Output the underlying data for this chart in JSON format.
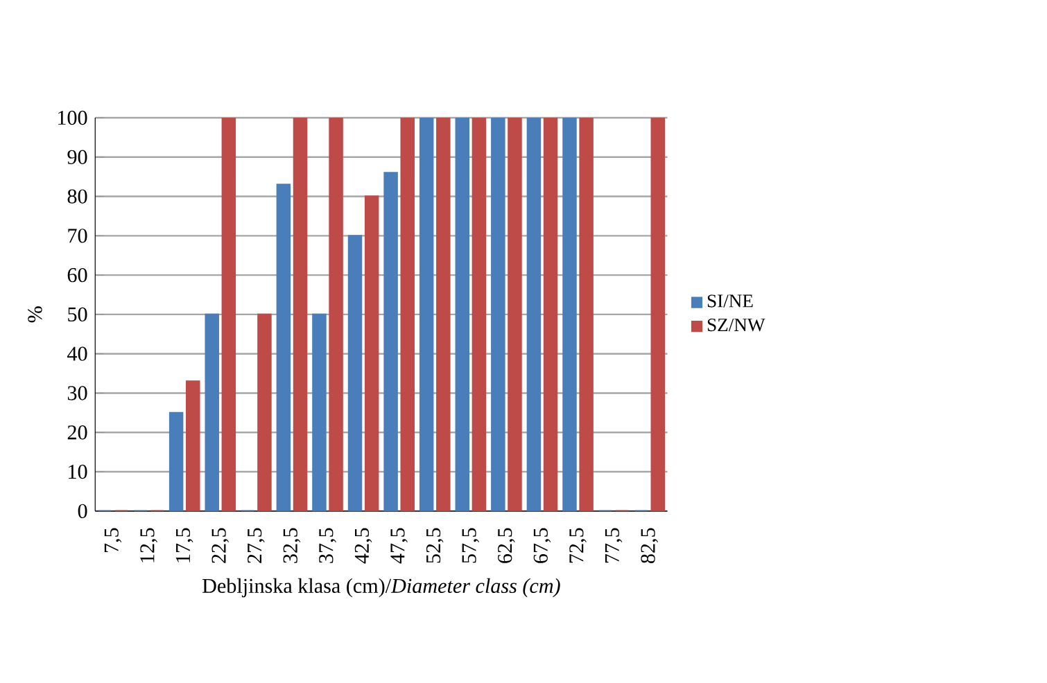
{
  "chart_data": {
    "type": "bar",
    "xlabel": "Debljinska klasa (cm)/*Diameter class (cm)*",
    "ylabel": "%",
    "categories": [
      "7,5",
      "12,5",
      "17,5",
      "22,5",
      "27,5",
      "32,5",
      "37,5",
      "42,5",
      "47,5",
      "52,5",
      "57,5",
      "62,5",
      "67,5",
      "72,5",
      "77,5",
      "82,5"
    ],
    "series": [
      {
        "name": "SI/NE",
        "color": "#4a7ebb",
        "values": [
          0,
          0,
          25,
          50,
          0,
          83,
          50,
          70,
          86,
          100,
          100,
          100,
          100,
          100,
          0,
          0
        ]
      },
      {
        "name": "SZ/NW",
        "color": "#be4b48",
        "values": [
          0,
          0,
          33,
          100,
          50,
          100,
          100,
          80,
          100,
          100,
          100,
          100,
          100,
          100,
          0,
          100
        ]
      }
    ],
    "ylim": [
      0,
      100
    ],
    "yticks": [
      0,
      10,
      20,
      30,
      40,
      50,
      60,
      70,
      80,
      90,
      100
    ],
    "grid": "y",
    "legend": "right"
  }
}
